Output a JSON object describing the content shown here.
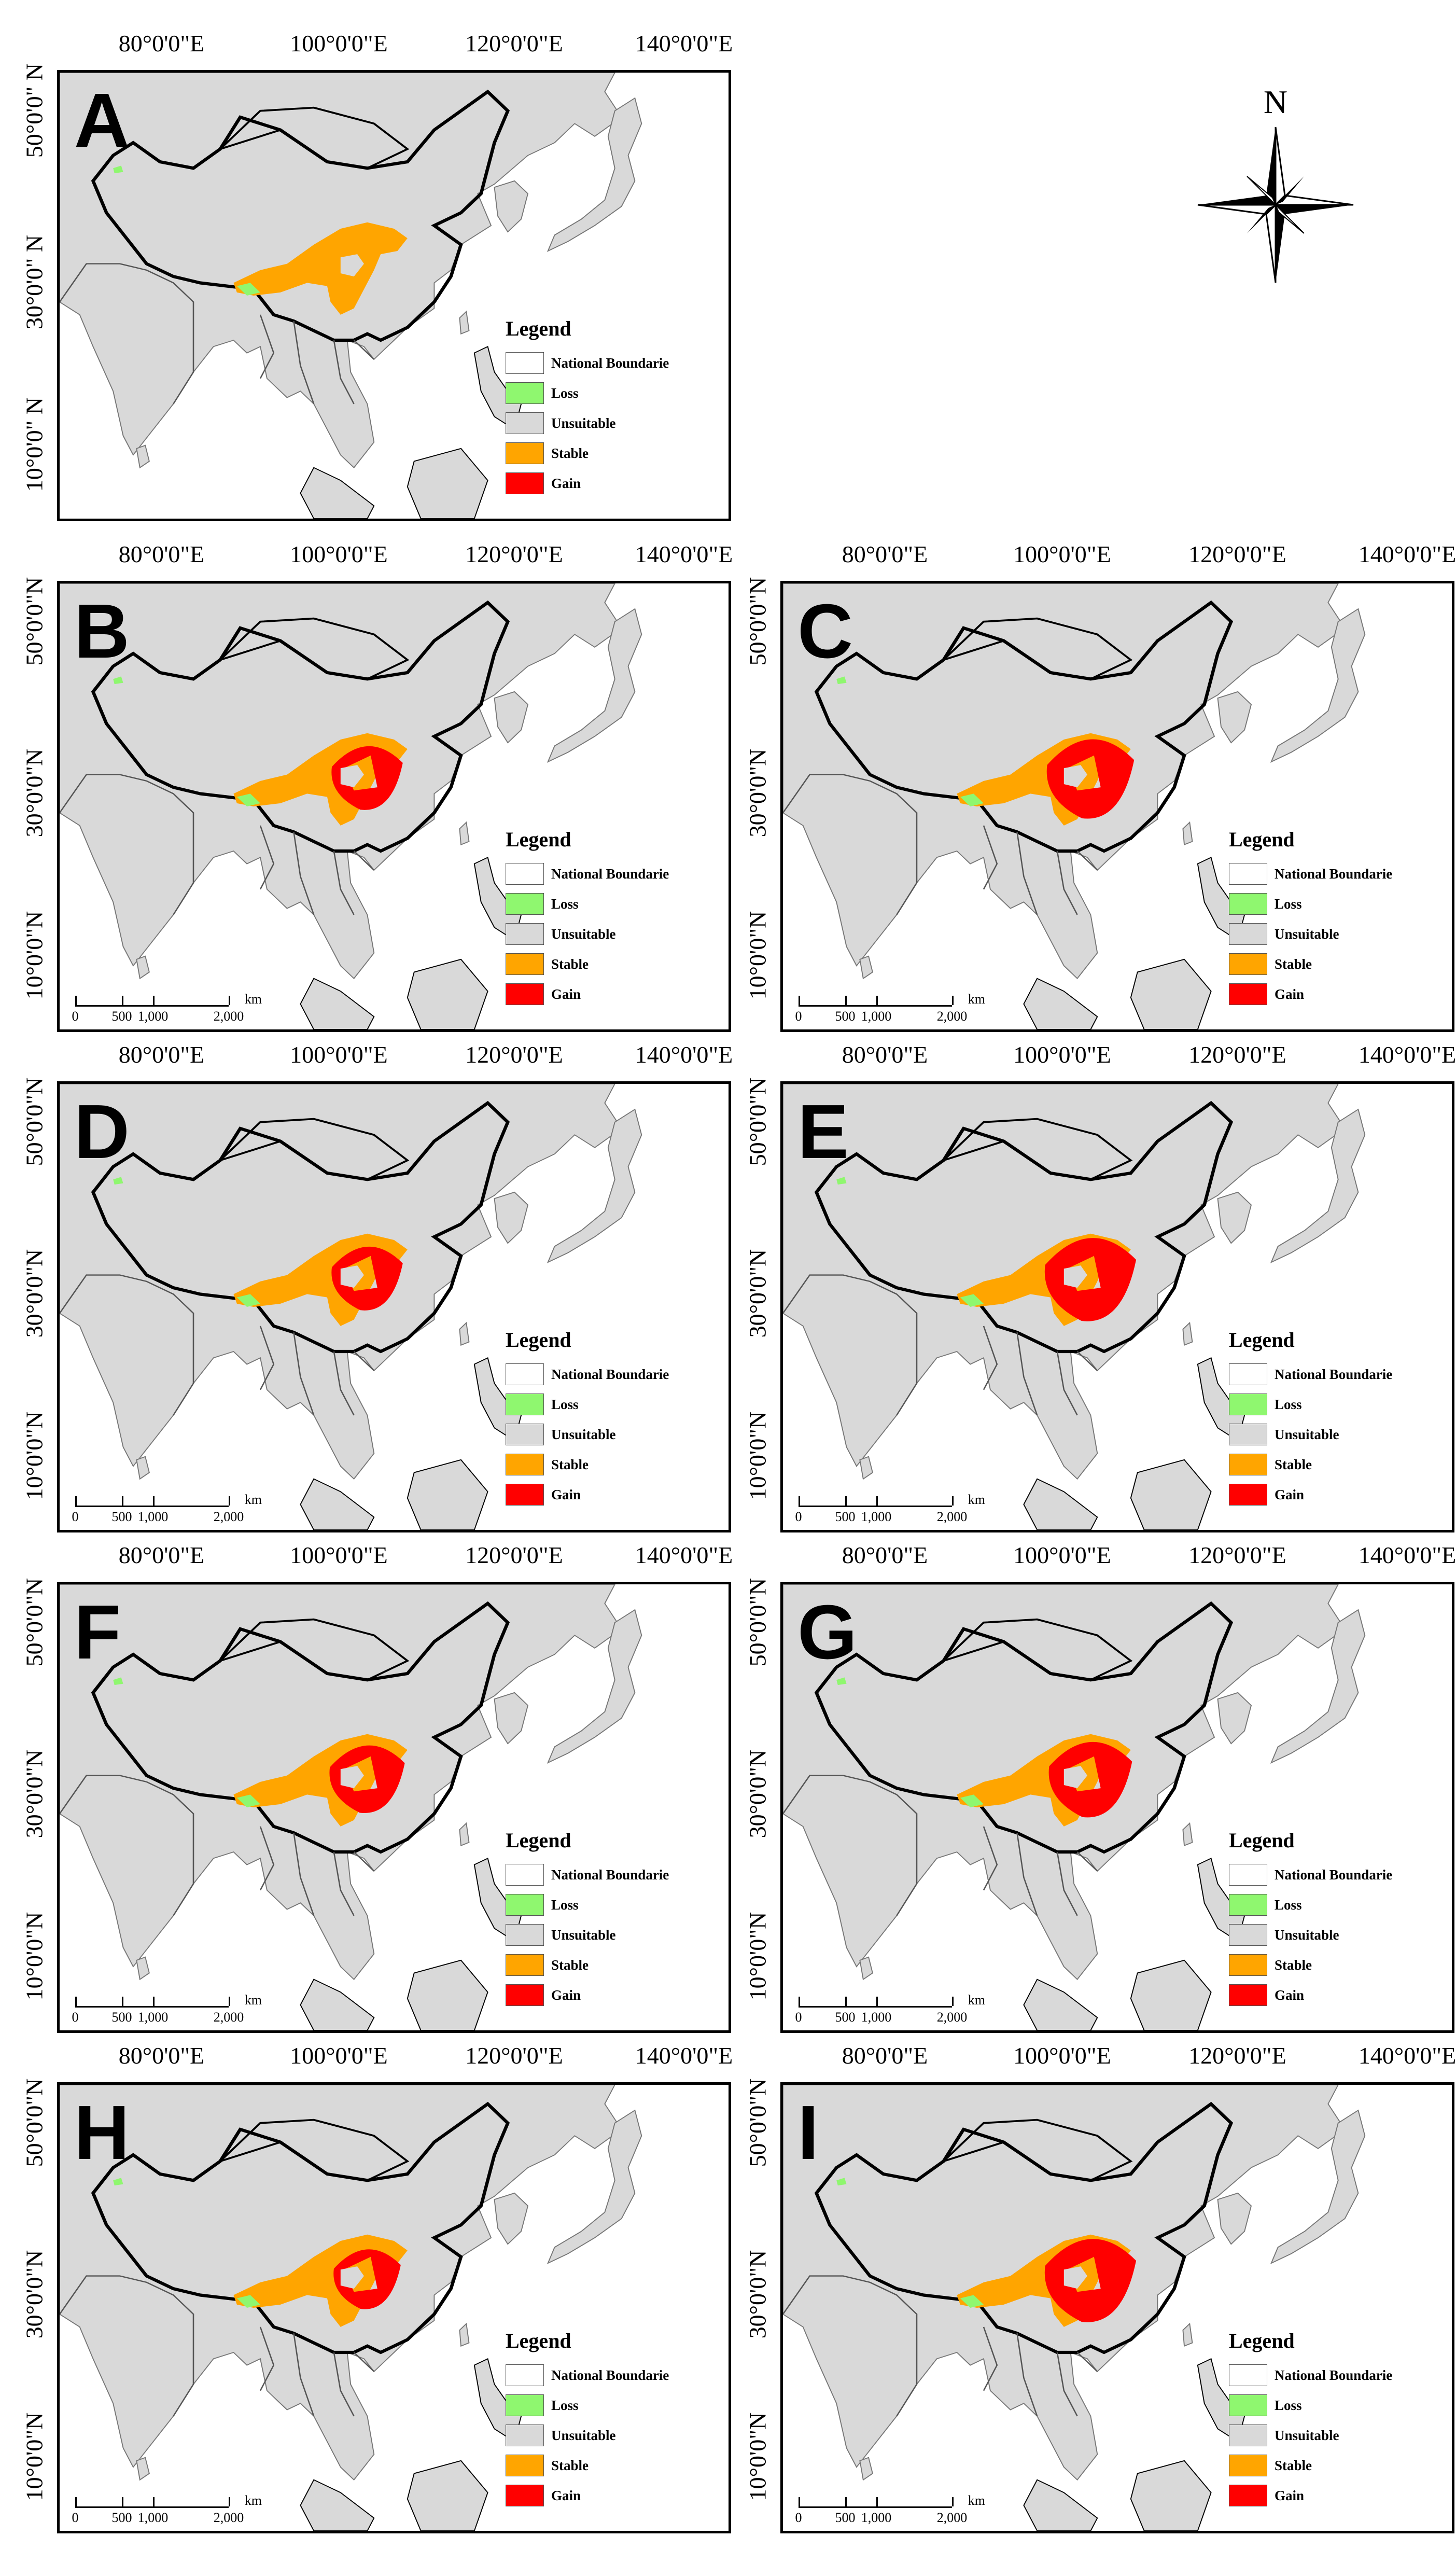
{
  "figure": {
    "compass_label": "N",
    "legend": {
      "title": "Legend",
      "items": [
        {
          "label": "National Boundarie",
          "color": "#ffffff"
        },
        {
          "label": "Loss",
          "color": "#8ff76f"
        },
        {
          "label": "Unsuitable",
          "color": "#d9d9d9"
        },
        {
          "label": "Stable",
          "color": "#ffa500"
        },
        {
          "label": "Gain",
          "color": "#ff0000"
        }
      ]
    },
    "scale_bar": {
      "unit": "km",
      "ticks": [
        "0",
        "500",
        "1,000",
        "2,000"
      ]
    },
    "longitude_labels": [
      "80°0'0\"E",
      "100°0'0\"E",
      "120°0'0\"E",
      "140°0'0\"E"
    ],
    "latitude_labels": [
      "50°0'0\"N",
      "30°0'0\"N",
      "10°0'0\"N"
    ],
    "latitude_labels_panel_a": [
      "50°0'0\" N",
      "30°0'0\" N",
      "10°0'0\" N"
    ],
    "colors": {
      "land": "#d9d9d9",
      "sea": "#ffffff",
      "boundary": "#000000",
      "stable": "#ffa500",
      "gain": "#ff0000",
      "loss": "#8ff76f"
    },
    "panels": [
      {
        "letter": "A",
        "scale": false,
        "gain_level": 0.0
      },
      {
        "letter": "B",
        "scale": true,
        "gain_level": 0.55
      },
      {
        "letter": "C",
        "scale": true,
        "gain_level": 0.75
      },
      {
        "letter": "D",
        "scale": true,
        "gain_level": 0.55
      },
      {
        "letter": "E",
        "scale": true,
        "gain_level": 0.8
      },
      {
        "letter": "F",
        "scale": true,
        "gain_level": 0.6
      },
      {
        "letter": "G",
        "scale": true,
        "gain_level": 0.7
      },
      {
        "letter": "H",
        "scale": true,
        "gain_level": 0.5
      },
      {
        "letter": "I",
        "scale": true,
        "gain_level": 0.8
      }
    ]
  }
}
